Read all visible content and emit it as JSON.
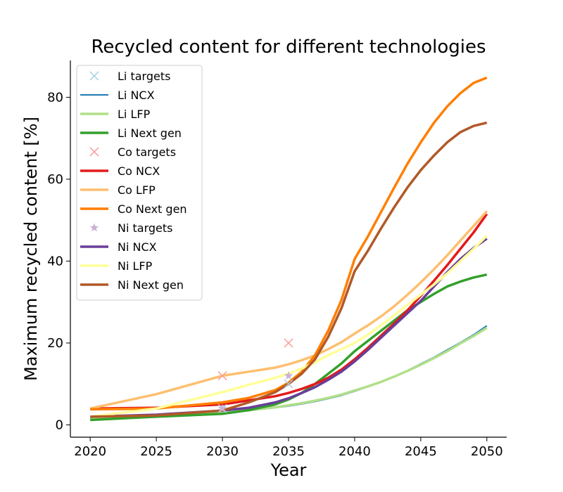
{
  "chart_data": {
    "type": "line",
    "title": "Recycled content for different technologies",
    "xlabel": "Year",
    "ylabel": "Maximum recycled content [%]",
    "xlim": [
      2018.5,
      2051.5
    ],
    "ylim": [
      -3,
      89
    ],
    "xticks": [
      2020,
      2025,
      2030,
      2035,
      2040,
      2045,
      2050
    ],
    "yticks": [
      0,
      20,
      40,
      60,
      80
    ],
    "grid": false,
    "legend_position": "top-left",
    "x": [
      2020,
      2025,
      2030,
      2032,
      2034,
      2035,
      2036,
      2037,
      2038,
      2039,
      2040,
      2041,
      2042,
      2043,
      2044,
      2045,
      2046,
      2047,
      2048,
      2049,
      2050
    ],
    "series": [
      {
        "name": "Li targets",
        "kind": "marker",
        "marker": "x",
        "color": "#a6cee3",
        "points": [
          [
            2030,
            4
          ],
          [
            2035,
            10
          ]
        ]
      },
      {
        "name": "Li NCX",
        "kind": "line",
        "color": "#1f78b4",
        "width": 2,
        "values": [
          1.5,
          2.2,
          3.0,
          3.5,
          4.2,
          4.6,
          5.1,
          5.7,
          6.4,
          7.2,
          8.2,
          9.3,
          10.5,
          11.8,
          13.3,
          14.9,
          16.5,
          18.3,
          20.1,
          22.0,
          24.2
        ]
      },
      {
        "name": "Li LFP",
        "kind": "line",
        "color": "#b2df8a",
        "width": 3.5,
        "values": [
          1.5,
          2.2,
          3.0,
          3.6,
          4.3,
          4.8,
          5.3,
          5.9,
          6.6,
          7.4,
          8.4,
          9.4,
          10.5,
          11.8,
          13.2,
          14.7,
          16.3,
          18.0,
          19.9,
          21.7,
          23.7
        ]
      },
      {
        "name": "Li Next gen",
        "kind": "line",
        "color": "#33a02c",
        "width": 3.5,
        "values": [
          1.2,
          2.0,
          2.7,
          3.6,
          5.0,
          6.2,
          7.8,
          10.0,
          12.5,
          15.0,
          18.0,
          20.5,
          23.0,
          25.5,
          28.0,
          30.0,
          32.0,
          33.8,
          35.0,
          36.0,
          36.7
        ]
      },
      {
        "name": "Co targets",
        "kind": "marker",
        "marker": "x",
        "color": "#fb9a99",
        "points": [
          [
            2030,
            12
          ],
          [
            2035,
            20
          ]
        ]
      },
      {
        "name": "Co NCX",
        "kind": "line",
        "color": "#e31a1c",
        "width": 3.5,
        "values": [
          4.0,
          4.2,
          5.0,
          6.0,
          7.0,
          7.8,
          8.8,
          10.0,
          11.5,
          13.5,
          16.0,
          18.8,
          21.8,
          24.8,
          28.0,
          31.5,
          35.2,
          39.0,
          43.0,
          47.0,
          51.5
        ]
      },
      {
        "name": "Co LFP",
        "kind": "line",
        "color": "#fdbf6f",
        "width": 3.5,
        "values": [
          4.0,
          7.5,
          12.0,
          13.0,
          14.0,
          14.8,
          15.8,
          17.0,
          18.5,
          20.2,
          22.3,
          24.3,
          26.5,
          29.0,
          31.8,
          34.8,
          38.0,
          41.4,
          45.0,
          48.6,
          52.2
        ]
      },
      {
        "name": "Co Next gen",
        "kind": "line",
        "color": "#ff7f00",
        "width": 3.5,
        "values": [
          3.8,
          4.0,
          5.5,
          6.6,
          8.5,
          10.3,
          13.0,
          17.0,
          23.0,
          30.5,
          40.5,
          46.0,
          52.0,
          58.0,
          63.8,
          69.0,
          73.8,
          77.8,
          81.0,
          83.5,
          84.8
        ]
      },
      {
        "name": "Ni targets",
        "kind": "marker",
        "marker": "star",
        "color": "#cab2d6",
        "points": [
          [
            2030,
            4
          ],
          [
            2035,
            12
          ]
        ]
      },
      {
        "name": "Ni NCX",
        "kind": "line",
        "color": "#6a3d9a",
        "width": 3.5,
        "values": [
          2.0,
          2.5,
          3.5,
          4.2,
          5.5,
          6.5,
          7.8,
          9.2,
          11.0,
          13.0,
          15.5,
          18.3,
          21.3,
          24.3,
          27.3,
          30.3,
          33.8,
          37.3,
          40.5,
          43.2,
          45.5
        ]
      },
      {
        "name": "Ni LFP",
        "kind": "line",
        "color": "#ffff99",
        "width": 3.5,
        "values": [
          2.0,
          4.0,
          8.0,
          9.8,
          11.5,
          12.5,
          13.8,
          15.3,
          17.0,
          18.5,
          20.0,
          22.0,
          24.3,
          26.8,
          29.3,
          31.8,
          34.3,
          37.0,
          40.0,
          43.0,
          46.2
        ]
      },
      {
        "name": "Ni Next gen",
        "kind": "line",
        "color": "#b15928",
        "width": 3.5,
        "values": [
          2.0,
          2.3,
          3.5,
          5.5,
          8.0,
          10.0,
          12.5,
          16.0,
          21.5,
          28.5,
          37.5,
          42.5,
          48.0,
          53.2,
          58.0,
          62.2,
          65.8,
          69.0,
          71.5,
          73.0,
          73.8
        ]
      }
    ]
  }
}
